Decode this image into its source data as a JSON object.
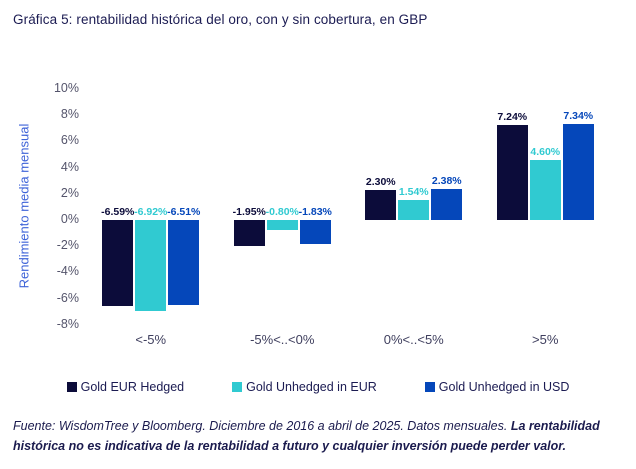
{
  "title": "Gráfica 5: rentabilidad histórica del oro, con y sin cobertura, en GBP",
  "chart_data": {
    "type": "bar",
    "categories": [
      "<-5%",
      "-5%<..<0%",
      "0%<..<5%",
      ">5%"
    ],
    "series": [
      {
        "name": "Gold EUR Hedged",
        "color": "#0c0c3a",
        "values": [
          -6.59,
          -1.95,
          2.3,
          7.24
        ]
      },
      {
        "name": "Gold Unhedged in EUR",
        "color": "#30cad1",
        "values": [
          -6.92,
          -0.8,
          1.54,
          4.6
        ]
      },
      {
        "name": "Gold Unhedged in USD",
        "color": "#0547ba",
        "values": [
          -6.51,
          -1.83,
          2.38,
          7.34
        ]
      }
    ],
    "ylabel": "Rendimiento media mensual",
    "xlabel": "",
    "ylim": [
      -8,
      10
    ],
    "ytick_step": 2,
    "ytick_suffix": "%",
    "data_label_decimals": 2,
    "data_label_suffix": "%",
    "grid": false,
    "legend_position": "bottom"
  },
  "footer": {
    "normal": "Fuente: WisdomTree y Bloomberg. Diciembre de 2016 a abril de 2025. Datos mensuales. ",
    "bold": "La rentabilidad histórica no es indicativa de la rentabilidad a futuro y cualquier inversión puede perder valor."
  }
}
